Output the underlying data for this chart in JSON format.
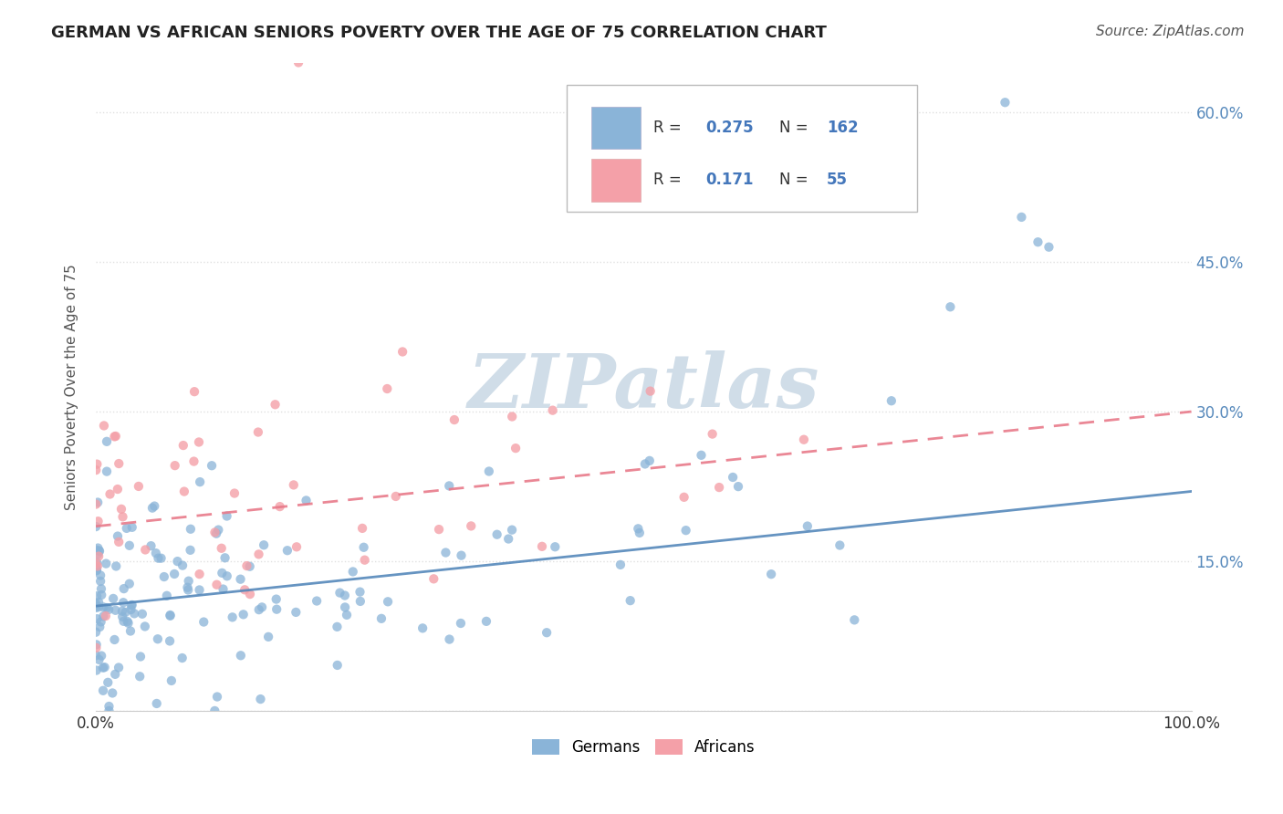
{
  "title": "GERMAN VS AFRICAN SENIORS POVERTY OVER THE AGE OF 75 CORRELATION CHART",
  "source": "Source: ZipAtlas.com",
  "ylabel": "Seniors Poverty Over the Age of 75",
  "xlim": [
    0,
    1
  ],
  "ylim": [
    0,
    0.65
  ],
  "xticks": [
    0,
    0.25,
    0.5,
    0.75,
    1.0
  ],
  "xticklabels": [
    "0.0%",
    "",
    "",
    "",
    "100.0%"
  ],
  "yticks": [
    0.0,
    0.15,
    0.3,
    0.45,
    0.6
  ],
  "yticklabels": [
    "",
    "15.0%",
    "30.0%",
    "45.0%",
    "60.0%"
  ],
  "german_color": "#8ab4d8",
  "african_color": "#f4a0a8",
  "german_R": 0.275,
  "german_N": 162,
  "african_R": 0.171,
  "african_N": 55,
  "german_line_color": "#5588bb",
  "african_line_color": "#e87a8a",
  "tick_color": "#5588bb",
  "background_color": "#ffffff",
  "grid_color": "#e0e0e0",
  "legend_R_N_color": "#4477bb",
  "legend_label_color": "#333333",
  "watermark_color": "#d0dde8",
  "german_trend_intercept": 0.105,
  "german_trend_slope": 0.115,
  "african_trend_intercept": 0.185,
  "african_trend_slope": 0.115
}
